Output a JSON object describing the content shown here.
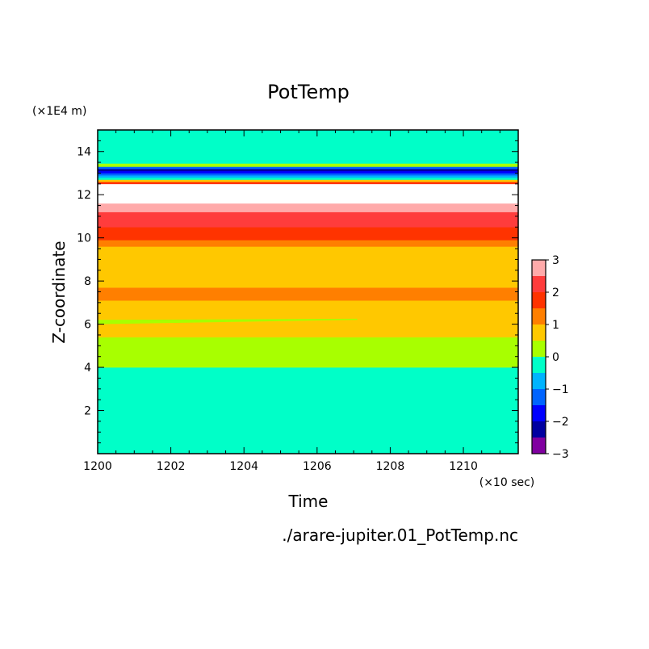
{
  "chart_data": {
    "type": "heatmap",
    "title": "PotTemp",
    "xlabel": "Time",
    "ylabel": "Z-coordinate",
    "x_unit": "(×10 sec)",
    "y_unit": "(×1E4 m)",
    "source_file": "./arare-jupiter.01_PotTemp.nc",
    "xlim": [
      1200,
      1211.5
    ],
    "ylim": [
      0,
      15
    ],
    "x_ticks": [
      1200,
      1202,
      1204,
      1206,
      1208,
      1210
    ],
    "y_ticks": [
      2,
      4,
      6,
      8,
      10,
      12,
      14
    ],
    "colorbar": {
      "ticks": [
        3,
        2,
        1,
        0,
        -1,
        -2,
        -3
      ],
      "levels": [
        {
          "min": 2.5,
          "max": 3.0,
          "color": "#ffaaaa"
        },
        {
          "min": 2.0,
          "max": 2.5,
          "color": "#ff3c3c"
        },
        {
          "min": 1.5,
          "max": 2.0,
          "color": "#ff3300"
        },
        {
          "min": 1.0,
          "max": 1.5,
          "color": "#ff7f00"
        },
        {
          "min": 0.5,
          "max": 1.0,
          "color": "#ffc800"
        },
        {
          "min": 0.0,
          "max": 0.5,
          "color": "#a8ff00"
        },
        {
          "min": -0.5,
          "max": 0.0,
          "color": "#00ffc8"
        },
        {
          "min": -1.0,
          "max": -0.5,
          "color": "#00b4ff"
        },
        {
          "min": -1.5,
          "max": -1.0,
          "color": "#0064ff"
        },
        {
          "min": -2.0,
          "max": -1.5,
          "color": "#0000ff"
        },
        {
          "min": -2.5,
          "max": -2.0,
          "color": "#0000a0"
        },
        {
          "min": -3.0,
          "max": -2.5,
          "color": "#8000a0"
        }
      ]
    },
    "bands": [
      {
        "z0": 0.0,
        "z1": 4.0,
        "value_range": "-0.5 to 0",
        "color": "#00ffc8"
      },
      {
        "z0": 4.0,
        "z1": 5.4,
        "value_range": "0 to 0.5",
        "color": "#a8ff00"
      },
      {
        "z0": 5.4,
        "z1": 7.1,
        "value_range": "0.5 to 1",
        "color": "#ffc800"
      },
      {
        "z0": 7.1,
        "z1": 7.7,
        "value_range": "1 to 1.5",
        "color": "#ff7f00"
      },
      {
        "z0": 7.7,
        "z1": 9.6,
        "value_range": "0.5 to 1",
        "color": "#ffc800"
      },
      {
        "z0": 9.6,
        "z1": 9.9,
        "value_range": "1 to 1.5",
        "color": "#ff7f00"
      },
      {
        "z0": 9.9,
        "z1": 10.5,
        "value_range": "1.5 to 2",
        "color": "#ff3300"
      },
      {
        "z0": 10.5,
        "z1": 11.2,
        "value_range": "2 to 2.5",
        "color": "#ff3c3c"
      },
      {
        "z0": 11.2,
        "z1": 11.6,
        "value_range": "2.5 to 3",
        "color": "#ffaaaa"
      },
      {
        "z0": 11.6,
        "z1": 12.5,
        "value_range": "above 3",
        "color": "#ffffff"
      },
      {
        "z0": 12.5,
        "z1": 12.6,
        "value_range": "1.5 to 2",
        "color": "#ff3300"
      },
      {
        "z0": 12.6,
        "z1": 12.7,
        "value_range": "0.5 to 1",
        "color": "#ffc800"
      },
      {
        "z0": 12.7,
        "z1": 12.8,
        "value_range": "-0.5 to 0",
        "color": "#00ffc8"
      },
      {
        "z0": 12.8,
        "z1": 12.9,
        "value_range": "-1 to -0.5",
        "color": "#00b4ff"
      },
      {
        "z0": 12.9,
        "z1": 13.0,
        "value_range": "-1.5 to -1",
        "color": "#0064ff"
      },
      {
        "z0": 13.0,
        "z1": 13.1,
        "value_range": "-2 to -1.5",
        "color": "#0000ff"
      },
      {
        "z0": 13.1,
        "z1": 13.2,
        "value_range": "-2.5 to -2",
        "color": "#0000a0"
      },
      {
        "z0": 13.2,
        "z1": 13.3,
        "value_range": "-1.5 to -1",
        "color": "#0064ff"
      },
      {
        "z0": 13.3,
        "z1": 13.45,
        "value_range": "0 to 0.5",
        "color": "#a8ff00"
      },
      {
        "z0": 13.45,
        "z1": 15.0,
        "value_range": "-0.5 to 0",
        "color": "#00ffc8"
      }
    ],
    "notes": [
      "Thin green (0 to 0.5) streak near z≈6.1 from t=1200 to ~1207"
    ]
  }
}
